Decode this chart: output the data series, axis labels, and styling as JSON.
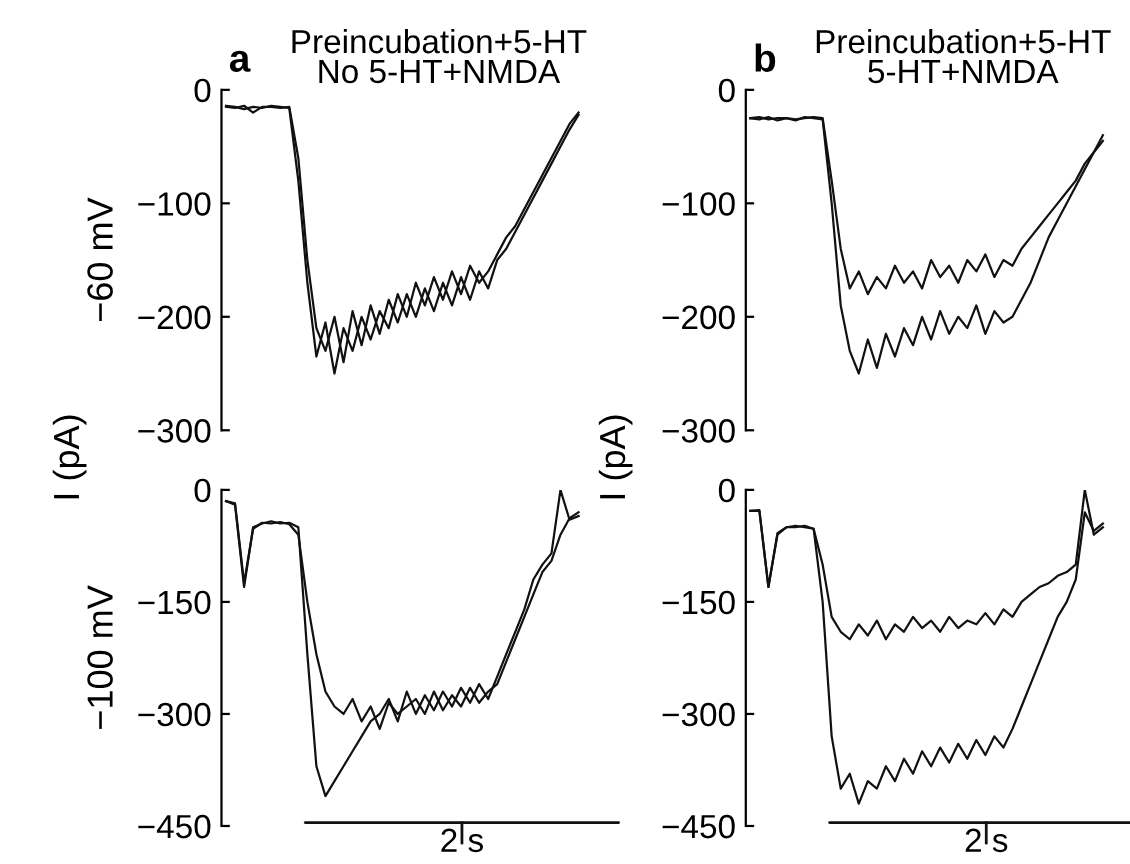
{
  "chart_data": [
    {
      "type": "line",
      "title": "Preincubation+5-HT",
      "subtitle": "No 5-HT+NMDA",
      "ylabel": "−60 mV",
      "annotations": [
        "a",
        "I (pA)"
      ],
      "categories": [
        null,
        null,
        null,
        null,
        null,
        null,
        null,
        null,
        null,
        null,
        null,
        null,
        null,
        null,
        null,
        null,
        null,
        null,
        null,
        null,
        null,
        null,
        null,
        null,
        null,
        null,
        null,
        null,
        null,
        null,
        null,
        null,
        null,
        null,
        null,
        null,
        null,
        null,
        null,
        null
      ],
      "ylim": [
        -300,
        0
      ],
      "yticks": [
        0,
        {
          "value": -100,
          "label": "−100"
        },
        {
          "value": -200,
          "label": "−200"
        },
        {
          "value": -300,
          "label": "−300"
        }
      ],
      "grid": false,
      "tick_labels": "y",
      "series": [
        {
          "color": "#111111",
          "values": [
            -15,
            -16,
            -14,
            -20,
            -15,
            -15,
            -16,
            -15,
            -60,
            -150,
            -210,
            -230,
            -200,
            -240,
            -195,
            -225,
            -190,
            -215,
            -185,
            -205,
            -180,
            -200,
            -175,
            -195,
            -170,
            -190,
            -165,
            -185,
            -160,
            -175,
            -150,
            -140,
            -125,
            -110,
            -95,
            -80,
            -65,
            -50,
            -35,
            -22
          ]
        },
        {
          "color": "#111111",
          "values": [
            -14,
            -15,
            -17,
            -15,
            -16,
            -14,
            -15,
            -16,
            -80,
            -170,
            -235,
            -205,
            -250,
            -210,
            -230,
            -200,
            -220,
            -195,
            -210,
            -180,
            -200,
            -170,
            -190,
            -165,
            -185,
            -160,
            -180,
            -155,
            -170,
            -160,
            -145,
            -130,
            -120,
            -105,
            -90,
            -75,
            -60,
            -45,
            -30,
            -20
          ]
        }
      ]
    },
    {
      "type": "line",
      "title": "Preincubation+5-HT",
      "subtitle": "5-HT+NMDA",
      "annotations": [
        "b",
        "I (pA)"
      ],
      "categories": [
        null,
        null,
        null,
        null,
        null,
        null,
        null,
        null,
        null,
        null,
        null,
        null,
        null,
        null,
        null,
        null,
        null,
        null,
        null,
        null,
        null,
        null,
        null,
        null,
        null,
        null,
        null,
        null,
        null,
        null,
        null,
        null,
        null,
        null,
        null,
        null,
        null,
        null,
        null,
        null
      ],
      "ylim": [
        -300,
        0
      ],
      "yticks": [
        0,
        {
          "value": -100,
          "label": "−100"
        },
        {
          "value": -200,
          "label": "−200"
        },
        {
          "value": -300,
          "label": "−300"
        }
      ],
      "grid": false,
      "tick_labels": "y",
      "series": [
        {
          "color": "#111111",
          "values": [
            -25,
            -26,
            -24,
            -27,
            -25,
            -26,
            -25,
            -24,
            -25,
            -80,
            -140,
            -175,
            -160,
            -180,
            -165,
            -175,
            -155,
            -170,
            -160,
            -175,
            -150,
            -165,
            -155,
            -170,
            -150,
            -160,
            -145,
            -165,
            -150,
            -155,
            -140,
            -130,
            -120,
            -110,
            -100,
            -90,
            -80,
            -65,
            -55,
            -40
          ]
        },
        {
          "color": "#111111",
          "values": [
            -25,
            -24,
            -26,
            -25,
            -25,
            -27,
            -24,
            -25,
            -26,
            -100,
            -190,
            -230,
            -250,
            -220,
            -245,
            -215,
            -235,
            -210,
            -225,
            -200,
            -220,
            -195,
            -215,
            -200,
            -210,
            -190,
            -215,
            -195,
            -205,
            -200,
            -185,
            -170,
            -150,
            -130,
            -115,
            -100,
            -85,
            -70,
            -55,
            -45
          ]
        }
      ]
    },
    {
      "type": "line",
      "ylabel": "−100 mV",
      "annotations": [
        "2 s"
      ],
      "categories": [
        null,
        null,
        null,
        null,
        null,
        null,
        null,
        null,
        null,
        null,
        null,
        null,
        null,
        null,
        null,
        null,
        null,
        null,
        null,
        null,
        null,
        null,
        null,
        null,
        null,
        null,
        null,
        null,
        null,
        null,
        null,
        null,
        null,
        null,
        null,
        null,
        null,
        null,
        null,
        null
      ],
      "ylim": [
        -450,
        0
      ],
      "yticks": [
        0,
        {
          "value": -150,
          "label": "−150"
        },
        {
          "value": -300,
          "label": "−300"
        },
        {
          "value": -450,
          "label": "−450"
        }
      ],
      "grid": false,
      "tick_labels": "y",
      "series": [
        {
          "color": "#111111",
          "values": [
            -15,
            -20,
            -130,
            -50,
            -45,
            -42,
            -45,
            -44,
            -50,
            -220,
            -370,
            -410,
            -390,
            -370,
            -350,
            -330,
            -310,
            -300,
            -280,
            -310,
            -270,
            -300,
            -275,
            -295,
            -270,
            -290,
            -265,
            -285,
            -260,
            -280,
            -250,
            -220,
            -190,
            -160,
            -120,
            -100,
            -85,
            0,
            -40,
            -35
          ]
        },
        {
          "color": "#111111",
          "values": [
            -15,
            -18,
            -125,
            -52,
            -44,
            -45,
            -43,
            -46,
            -60,
            -150,
            -220,
            -270,
            -290,
            -300,
            -280,
            -310,
            -290,
            -320,
            -285,
            -300,
            -290,
            -280,
            -300,
            -270,
            -295,
            -275,
            -290,
            -265,
            -285,
            -270,
            -260,
            -230,
            -200,
            -170,
            -140,
            -110,
            -95,
            -60,
            -38,
            -30
          ]
        }
      ]
    },
    {
      "type": "line",
      "annotations": [
        "2 s"
      ],
      "categories": [
        null,
        null,
        null,
        null,
        null,
        null,
        null,
        null,
        null,
        null,
        null,
        null,
        null,
        null,
        null,
        null,
        null,
        null,
        null,
        null,
        null,
        null,
        null,
        null,
        null,
        null,
        null,
        null,
        null,
        null,
        null,
        null,
        null,
        null,
        null,
        null,
        null,
        null,
        null,
        null
      ],
      "ylim": [
        -450,
        0
      ],
      "yticks": [
        0,
        {
          "value": -150,
          "label": "−150"
        },
        {
          "value": -300,
          "label": "−300"
        },
        {
          "value": -450,
          "label": "−450"
        }
      ],
      "grid": false,
      "tick_labels": "y",
      "series": [
        {
          "color": "#111111",
          "values": [
            -28,
            -28,
            -130,
            -60,
            -50,
            -48,
            -50,
            -52,
            -100,
            -170,
            -190,
            -200,
            -180,
            -195,
            -175,
            -200,
            -180,
            -190,
            -170,
            -185,
            -175,
            -190,
            -170,
            -185,
            -175,
            -180,
            -165,
            -180,
            -160,
            -170,
            -150,
            -140,
            -130,
            -125,
            -115,
            -110,
            -100,
            0,
            -60,
            -50
          ]
        },
        {
          "color": "#111111",
          "values": [
            -28,
            -27,
            -130,
            -58,
            -50,
            -50,
            -48,
            -52,
            -150,
            -330,
            -400,
            -380,
            -420,
            -390,
            -400,
            -370,
            -390,
            -360,
            -380,
            -350,
            -370,
            -345,
            -365,
            -340,
            -360,
            -335,
            -355,
            -330,
            -345,
            -320,
            -290,
            -260,
            -230,
            -200,
            -170,
            -150,
            -120,
            -30,
            -55,
            -45
          ]
        }
      ]
    }
  ]
}
